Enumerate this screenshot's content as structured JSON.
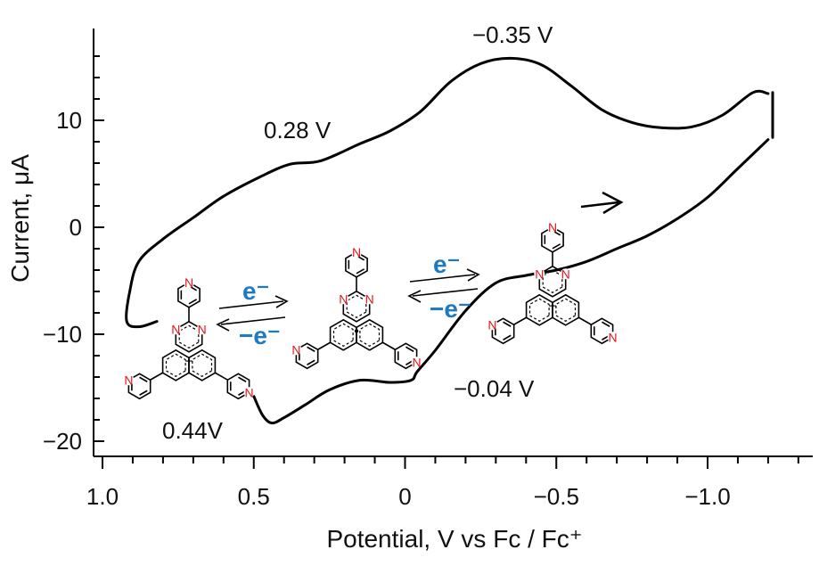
{
  "chart_data": {
    "type": "line",
    "xlabel": "Potential, V vs Fc / Fc⁺",
    "ylabel": "Current, μA",
    "xlim": [
      1.0,
      -1.3
    ],
    "ylim": [
      -21,
      18
    ],
    "x_reversed": true,
    "x_ticks": [
      1.0,
      0.5,
      0,
      -0.5,
      -1.0
    ],
    "x_tick_labels": [
      "1.0",
      "0.5",
      "0",
      "−0.5",
      "−1.0"
    ],
    "y_ticks": [
      -20,
      -10,
      0,
      10
    ],
    "y_tick_labels": [
      "−20",
      "−10",
      "0",
      "10"
    ],
    "grid": false,
    "line_color": "#000000",
    "series": [
      {
        "points": [
          [
            0.5,
            -15.8
          ],
          [
            0.47,
            -17.6
          ],
          [
            0.44,
            -18.3
          ],
          [
            0.4,
            -17.8
          ],
          [
            0.33,
            -16.6
          ],
          [
            0.25,
            -15.2
          ],
          [
            0.15,
            -14.3
          ],
          [
            0.05,
            -14.5
          ],
          [
            -0.02,
            -14.3
          ],
          [
            -0.04,
            -13.5
          ],
          [
            -0.1,
            -11.5
          ],
          [
            -0.2,
            -7.8
          ],
          [
            -0.3,
            -5.2
          ],
          [
            -0.4,
            -4.5
          ],
          [
            -0.5,
            -4.0
          ],
          [
            -0.6,
            -3.2
          ],
          [
            -0.7,
            -2.0
          ],
          [
            -0.8,
            -0.8
          ],
          [
            -0.9,
            0.8
          ],
          [
            -1.0,
            2.8
          ],
          [
            -1.1,
            5.5
          ],
          [
            -1.2,
            8.2
          ]
        ]
      },
      {
        "points": [
          [
            -1.2,
            12.5
          ],
          [
            -1.15,
            12.6
          ],
          [
            -1.05,
            10.5
          ],
          [
            -0.95,
            9.4
          ],
          [
            -0.85,
            9.3
          ],
          [
            -0.75,
            9.8
          ],
          [
            -0.65,
            11.0
          ],
          [
            -0.55,
            13.2
          ],
          [
            -0.45,
            15.2
          ],
          [
            -0.35,
            15.8
          ],
          [
            -0.25,
            15.3
          ],
          [
            -0.15,
            13.6
          ],
          [
            -0.05,
            10.8
          ],
          [
            0.05,
            9.0
          ],
          [
            0.15,
            7.8
          ],
          [
            0.28,
            6.2
          ],
          [
            0.38,
            5.9
          ],
          [
            0.48,
            4.7
          ],
          [
            0.6,
            2.9
          ],
          [
            0.7,
            0.9
          ],
          [
            0.8,
            -1.1
          ],
          [
            0.88,
            -3.2
          ],
          [
            0.91,
            -6.0
          ],
          [
            0.92,
            -8.8
          ],
          [
            0.88,
            -9.3
          ],
          [
            0.82,
            -8.8
          ]
        ]
      }
    ],
    "annotations": [
      {
        "text": "−0.35 V"
      },
      {
        "text": "0.28 V"
      },
      {
        "text": "−0.04 V"
      },
      {
        "text": "0.44V"
      }
    ],
    "scheme": {
      "forward_label": "e⁻",
      "reverse_label": "−e⁻",
      "atom_label": "N"
    }
  }
}
